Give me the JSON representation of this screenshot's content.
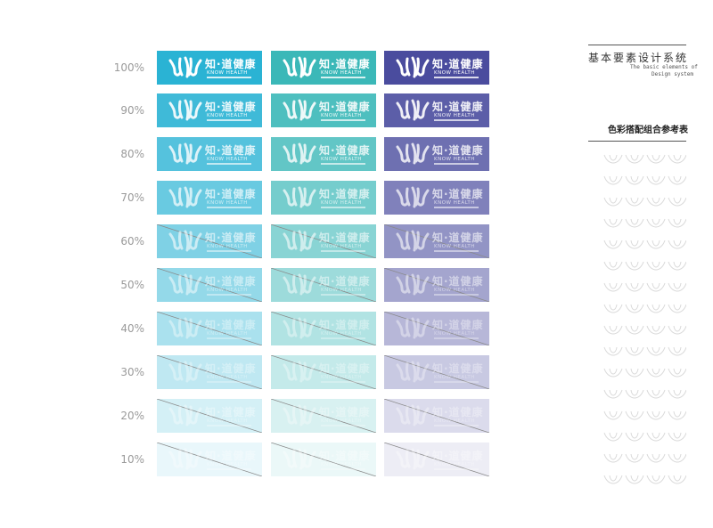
{
  "header": {
    "title_cn": "基本要素设计系统",
    "title_en_line1": "The basic elements of",
    "title_en_line2": "Design system",
    "subtitle": "色彩搭配组合参考表"
  },
  "logo": {
    "name_cn": "知·道健康",
    "name_en": "KNOW HEALTH"
  },
  "rows": [
    {
      "label": "100%",
      "opacity": 1.0
    },
    {
      "label": "90%",
      "opacity": 0.9
    },
    {
      "label": "80%",
      "opacity": 0.8
    },
    {
      "label": "70%",
      "opacity": 0.7
    },
    {
      "label": "60%",
      "opacity": 0.6
    },
    {
      "label": "50%",
      "opacity": 0.5
    },
    {
      "label": "40%",
      "opacity": 0.4
    },
    {
      "label": "30%",
      "opacity": 0.3
    },
    {
      "label": "20%",
      "opacity": 0.2
    },
    {
      "label": "10%",
      "opacity": 0.1
    }
  ],
  "columns": [
    {
      "color": "#2ab3d4"
    },
    {
      "color": "#3bb8b8"
    },
    {
      "color": "#4a4c9e"
    }
  ]
}
